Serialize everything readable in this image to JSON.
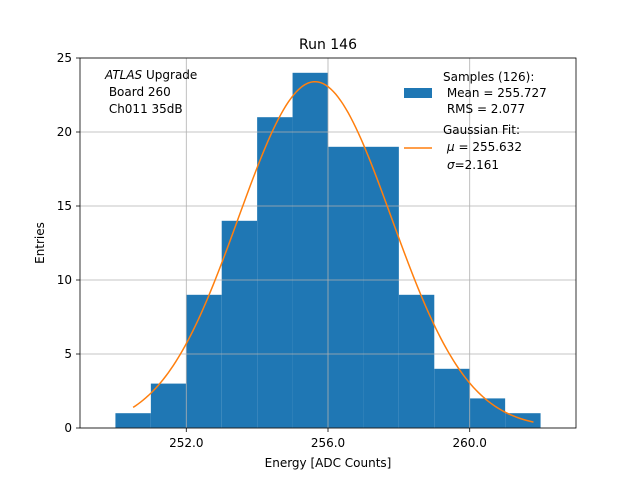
{
  "chart_data": {
    "type": "bar",
    "title": "Run 146",
    "xlabel": "Energy [ADC Counts]",
    "ylabel": "Entries",
    "xlim": [
      249.0,
      263.0
    ],
    "ylim": [
      0,
      25
    ],
    "xticks": [
      252.0,
      256.0,
      260.0
    ],
    "xtick_labels": [
      "252.0",
      "256.0",
      "260.0"
    ],
    "yticks": [
      0,
      5,
      10,
      15,
      20,
      25
    ],
    "ytick_labels": [
      "0",
      "5",
      "10",
      "15",
      "20",
      "25"
    ],
    "grid": true,
    "annotation": {
      "italic": "ATLAS",
      "line1_rest": " Upgrade",
      "line2": " Board 260",
      "line3": " Ch011 35dB"
    },
    "histogram": {
      "color": "#1f77b4",
      "bin_edges": [
        250.0,
        251.0,
        252.0,
        253.0,
        254.0,
        255.0,
        256.0,
        257.0,
        258.0,
        259.0,
        260.0,
        261.0,
        262.0
      ],
      "counts": [
        1,
        3,
        9,
        14,
        21,
        24,
        19,
        19,
        9,
        4,
        2,
        1
      ],
      "legend_line1": "Samples (126):",
      "legend_line2": " Mean = 255.727",
      "legend_line3": " RMS = 2.077"
    },
    "fit": {
      "color": "#ff7f0e",
      "type": "gaussian",
      "mu": 255.632,
      "sigma": 2.161,
      "amplitude": 23.4,
      "x_range": [
        250.5,
        261.8
      ],
      "legend_line1": "Gaussian Fit:",
      "legend_mu_sym": "μ",
      "legend_mu_rest": " = 255.632",
      "legend_sigma_sym": "σ",
      "legend_sigma_rest": "=2.161"
    }
  }
}
